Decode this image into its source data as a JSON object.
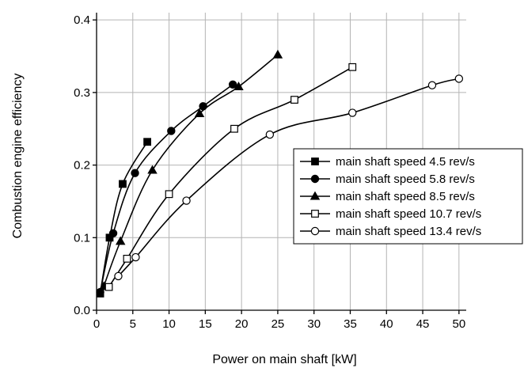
{
  "chart_data": {
    "type": "line",
    "title": "",
    "xlabel": "Power on main shaft [kW]",
    "ylabel": "Combustion engine efficiency",
    "xlim": [
      0,
      51
    ],
    "ylim": [
      0,
      0.41
    ],
    "xticks": [
      0,
      5,
      10,
      15,
      20,
      25,
      30,
      35,
      40,
      45,
      50
    ],
    "yticks": [
      0.0,
      0.1,
      0.2,
      0.3,
      0.4
    ],
    "xtick_labels": [
      "0",
      "5",
      "10",
      "15",
      "20",
      "25",
      "30",
      "35",
      "40",
      "45",
      "50"
    ],
    "ytick_labels": [
      "0.0",
      "0.1",
      "0.2",
      "0.3",
      "0.4"
    ],
    "grid": true,
    "legend_position": "right",
    "series": [
      {
        "name": "main shaft speed 4.5 rev/s",
        "marker": "filled-square",
        "x": [
          0.5,
          1.8,
          3.6,
          7.0
        ],
        "y": [
          0.023,
          0.1,
          0.174,
          0.232
        ]
      },
      {
        "name": "main shaft speed 5.8 rev/s",
        "marker": "filled-circle",
        "x": [
          0.5,
          2.3,
          5.3,
          10.3,
          14.7,
          18.8
        ],
        "y": [
          0.025,
          0.106,
          0.189,
          0.247,
          0.281,
          0.311
        ]
      },
      {
        "name": "main shaft speed 8.5 rev/s",
        "marker": "filled-triangle",
        "x": [
          1.0,
          3.3,
          7.7,
          14.2,
          19.6,
          25.0
        ],
        "y": [
          0.033,
          0.095,
          0.193,
          0.271,
          0.308,
          0.352
        ]
      },
      {
        "name": "main shaft speed 10.7 rev/s",
        "marker": "open-square",
        "x": [
          1.7,
          4.2,
          10.0,
          19.0,
          27.3,
          35.3
        ],
        "y": [
          0.032,
          0.071,
          0.16,
          0.25,
          0.29,
          0.335
        ]
      },
      {
        "name": "main shaft speed 13.4 rev/s",
        "marker": "open-circle",
        "x": [
          3.0,
          5.4,
          12.4,
          23.9,
          35.3,
          46.3,
          50.0
        ],
        "y": [
          0.047,
          0.073,
          0.151,
          0.242,
          0.272,
          0.31,
          0.319
        ]
      }
    ]
  }
}
